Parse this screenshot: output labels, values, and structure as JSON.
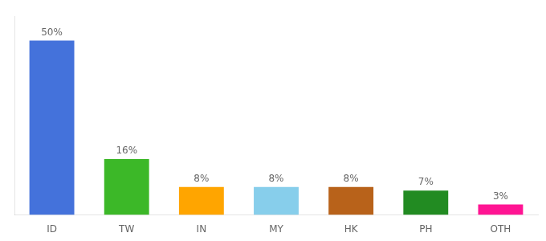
{
  "chart_data": {
    "type": "bar",
    "categories": [
      "ID",
      "TW",
      "IN",
      "MY",
      "HK",
      "PH",
      "OTH"
    ],
    "values": [
      50,
      16,
      8,
      8,
      8,
      7,
      3
    ],
    "value_labels": [
      "50%",
      "16%",
      "8%",
      "8%",
      "8%",
      "7%",
      "3%"
    ],
    "colors": [
      "#4472DB",
      "#3CB828",
      "#FFA500",
      "#87CEEB",
      "#B8621A",
      "#228B22",
      "#FF1493"
    ],
    "ylim": [
      0,
      57
    ],
    "grid": false,
    "data_labels": true,
    "tick_labels": "x"
  }
}
